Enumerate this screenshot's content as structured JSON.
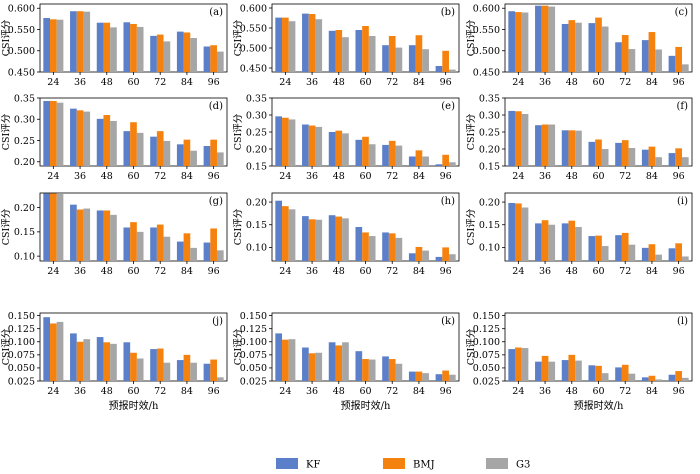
{
  "legend": [
    {
      "name": "KF",
      "color": "#5b7fc8"
    },
    {
      "name": "BMJ",
      "color": "#f5820f"
    },
    {
      "name": "G3",
      "color": "#a6a6a6"
    }
  ],
  "chart_data": {
    "type": "bar",
    "categories": [
      "24",
      "36",
      "48",
      "60",
      "72",
      "84",
      "96"
    ],
    "ylabel": "CSI评分",
    "xlabel": "预报时效/h",
    "legend_position": "bottom-center",
    "grid": false,
    "panels": [
      {
        "label": "(a)",
        "ylim": [
          0.45,
          0.61
        ],
        "yticks": [
          0.45,
          0.5,
          0.55,
          0.6
        ],
        "series": [
          {
            "name": "KF",
            "values": [
              0.577,
              0.593,
              0.566,
              0.567,
              0.535,
              0.545,
              0.51
            ]
          },
          {
            "name": "BMJ",
            "values": [
              0.574,
              0.593,
              0.566,
              0.563,
              0.538,
              0.543,
              0.513
            ]
          },
          {
            "name": "G3",
            "values": [
              0.573,
              0.592,
              0.555,
              0.556,
              0.522,
              0.53,
              0.498
            ]
          }
        ]
      },
      {
        "label": "(b)",
        "ylim": [
          0.44,
          0.61
        ],
        "yticks": [
          0.45,
          0.5,
          0.55,
          0.6
        ],
        "series": [
          {
            "name": "KF",
            "values": [
              0.576,
              0.586,
              0.543,
              0.545,
              0.507,
              0.507,
              0.455
            ]
          },
          {
            "name": "BMJ",
            "values": [
              0.576,
              0.585,
              0.545,
              0.555,
              0.53,
              0.532,
              0.493
            ]
          },
          {
            "name": "G3",
            "values": [
              0.567,
              0.572,
              0.527,
              0.53,
              0.501,
              0.497,
              0.446
            ]
          }
        ]
      },
      {
        "label": "(c)",
        "ylim": [
          0.45,
          0.61
        ],
        "yticks": [
          0.45,
          0.5,
          0.55,
          0.6
        ],
        "series": [
          {
            "name": "KF",
            "values": [
              0.593,
              0.606,
              0.563,
              0.565,
              0.52,
              0.525,
              0.488
            ]
          },
          {
            "name": "BMJ",
            "values": [
              0.591,
              0.606,
              0.572,
              0.578,
              0.537,
              0.544,
              0.509
            ]
          },
          {
            "name": "G3",
            "values": [
              0.59,
              0.604,
              0.566,
              0.557,
              0.504,
              0.503,
              0.468
            ]
          }
        ]
      },
      {
        "label": "(d)",
        "ylim": [
          0.19,
          0.35
        ],
        "yticks": [
          0.2,
          0.25,
          0.3,
          0.35
        ],
        "series": [
          {
            "name": "KF",
            "values": [
              0.343,
              0.325,
              0.301,
              0.272,
              0.259,
              0.241,
              0.237
            ]
          },
          {
            "name": "BMJ",
            "values": [
              0.343,
              0.321,
              0.31,
              0.293,
              0.272,
              0.252,
              0.252
            ]
          },
          {
            "name": "G3",
            "values": [
              0.339,
              0.318,
              0.296,
              0.268,
              0.249,
              0.226,
              0.222
            ]
          }
        ]
      },
      {
        "label": "(e)",
        "ylim": [
          0.15,
          0.35
        ],
        "yticks": [
          0.15,
          0.2,
          0.25,
          0.3,
          0.35
        ],
        "series": [
          {
            "name": "KF",
            "values": [
              0.296,
              0.272,
              0.25,
              0.227,
              0.212,
              0.178,
              0.155
            ]
          },
          {
            "name": "BMJ",
            "values": [
              0.292,
              0.269,
              0.254,
              0.236,
              0.224,
              0.196,
              0.183
            ]
          },
          {
            "name": "G3",
            "values": [
              0.287,
              0.265,
              0.246,
              0.214,
              0.21,
              0.178,
              0.161
            ]
          }
        ]
      },
      {
        "label": "(f)",
        "ylim": [
          0.15,
          0.35
        ],
        "yticks": [
          0.15,
          0.2,
          0.25,
          0.3,
          0.35
        ],
        "series": [
          {
            "name": "KF",
            "values": [
              0.312,
              0.27,
              0.255,
              0.221,
              0.218,
              0.198,
              0.188
            ]
          },
          {
            "name": "BMJ",
            "values": [
              0.311,
              0.272,
              0.255,
              0.228,
              0.226,
              0.207,
              0.202
            ]
          },
          {
            "name": "G3",
            "values": [
              0.303,
              0.272,
              0.254,
              0.2,
              0.203,
              0.176,
              0.176
            ]
          }
        ]
      },
      {
        "label": "(g)",
        "ylim": [
          0.09,
          0.23
        ],
        "yticks": [
          0.1,
          0.15,
          0.2
        ],
        "series": [
          {
            "name": "KF",
            "values": [
              0.229,
              0.206,
              0.194,
              0.159,
              0.159,
              0.13,
              0.128
            ]
          },
          {
            "name": "BMJ",
            "values": [
              0.229,
              0.196,
              0.194,
              0.17,
              0.165,
              0.147,
              0.157
            ]
          },
          {
            "name": "G3",
            "values": [
              0.228,
              0.198,
              0.185,
              0.15,
              0.14,
              0.117,
              0.112
            ]
          }
        ]
      },
      {
        "label": "(h)",
        "ylim": [
          0.07,
          0.22
        ],
        "yticks": [
          0.1,
          0.15,
          0.2
        ],
        "series": [
          {
            "name": "KF",
            "values": [
              0.203,
              0.169,
              0.171,
              0.145,
              0.133,
              0.087,
              0.079
            ]
          },
          {
            "name": "BMJ",
            "values": [
              0.191,
              0.162,
              0.168,
              0.133,
              0.131,
              0.101,
              0.1
            ]
          },
          {
            "name": "G3",
            "values": [
              0.184,
              0.161,
              0.164,
              0.125,
              0.121,
              0.093,
              0.085
            ]
          }
        ]
      },
      {
        "label": "(i)",
        "ylim": [
          0.07,
          0.22
        ],
        "yticks": [
          0.1,
          0.15,
          0.2
        ],
        "series": [
          {
            "name": "KF",
            "values": [
              0.198,
              0.153,
              0.153,
              0.125,
              0.127,
              0.099,
              0.098
            ]
          },
          {
            "name": "BMJ",
            "values": [
              0.197,
              0.16,
              0.159,
              0.126,
              0.132,
              0.107,
              0.109
            ]
          },
          {
            "name": "G3",
            "values": [
              0.188,
              0.15,
              0.145,
              0.103,
              0.106,
              0.084,
              0.08
            ]
          }
        ]
      },
      {
        "label": "(j)",
        "ylim": [
          0.025,
          0.155
        ],
        "yticks": [
          0.025,
          0.05,
          0.075,
          0.1,
          0.125,
          0.15
        ],
        "series": [
          {
            "name": "KF",
            "values": [
              0.147,
              0.116,
              0.109,
              0.099,
              0.086,
              0.065,
              0.058
            ]
          },
          {
            "name": "BMJ",
            "values": [
              0.135,
              0.1,
              0.099,
              0.079,
              0.087,
              0.075,
              0.066
            ]
          },
          {
            "name": "G3",
            "values": [
              0.138,
              0.105,
              0.096,
              0.068,
              0.06,
              0.06,
              0.032
            ]
          }
        ]
      },
      {
        "label": "(k)",
        "ylim": [
          0.025,
          0.155
        ],
        "yticks": [
          0.025,
          0.05,
          0.075,
          0.1,
          0.125,
          0.15
        ],
        "series": [
          {
            "name": "KF",
            "values": [
              0.116,
              0.089,
              0.099,
              0.082,
              0.072,
              0.043,
              0.038
            ]
          },
          {
            "name": "BMJ",
            "values": [
              0.104,
              0.078,
              0.093,
              0.067,
              0.067,
              0.043,
              0.045
            ]
          },
          {
            "name": "G3",
            "values": [
              0.105,
              0.079,
              0.099,
              0.066,
              0.058,
              0.04,
              0.037
            ]
          }
        ]
      },
      {
        "label": "(l)",
        "ylim": [
          0.025,
          0.155
        ],
        "yticks": [
          0.025,
          0.05,
          0.075,
          0.1,
          0.125,
          0.15
        ],
        "series": [
          {
            "name": "KF",
            "values": [
              0.086,
              0.062,
              0.065,
              0.055,
              0.051,
              0.032,
              0.037
            ]
          },
          {
            "name": "BMJ",
            "values": [
              0.089,
              0.073,
              0.075,
              0.054,
              0.056,
              0.035,
              0.044
            ]
          },
          {
            "name": "G3",
            "values": [
              0.088,
              0.062,
              0.064,
              0.04,
              0.039,
              0.028,
              0.031
            ]
          }
        ]
      }
    ]
  }
}
